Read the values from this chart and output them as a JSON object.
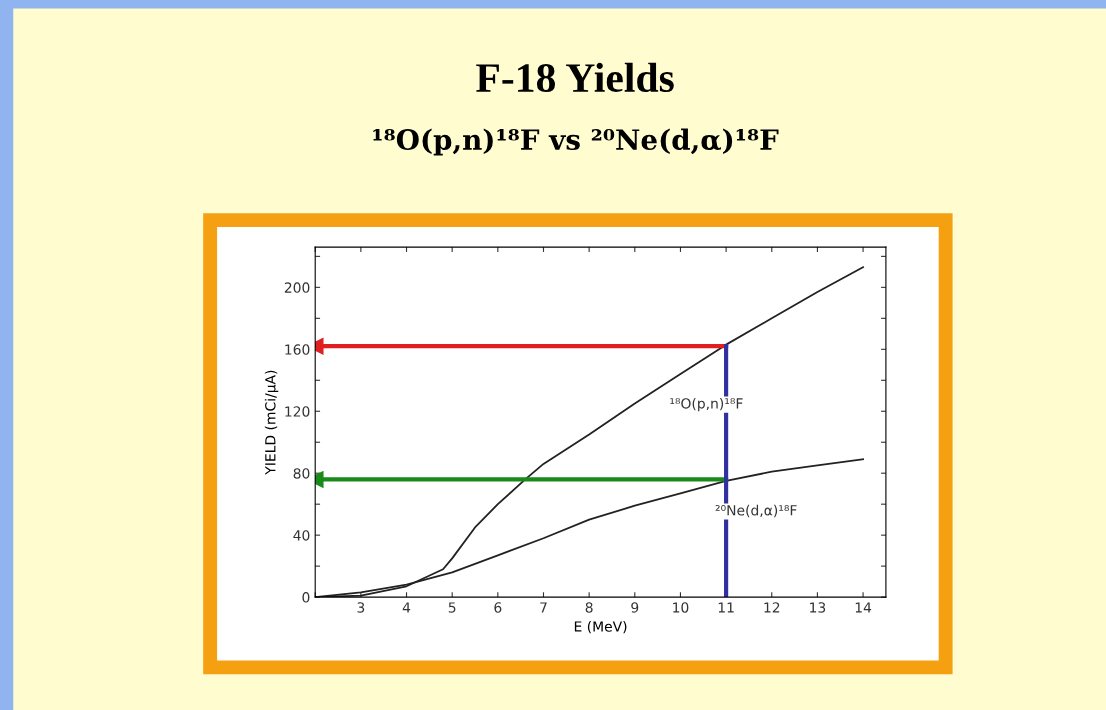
{
  "chart_data": {
    "type": "line",
    "title": "F-18 Yields",
    "subtitle": "¹⁸O(p,n)¹⁸F vs ²⁰Ne(d,α)¹⁸F",
    "xlabel": "E (MeV)",
    "ylabel": "YIELD (mCi/μA)",
    "series": [
      {
        "name": "¹⁸O(p,n)¹⁸F",
        "color": "#222222",
        "x": [
          2,
          3,
          4,
          4.8,
          5,
          5.5,
          6,
          6.6,
          7,
          8,
          9,
          10,
          11,
          12,
          13,
          14
        ],
        "values": [
          0,
          1,
          7,
          18,
          25,
          45,
          60,
          76,
          86,
          105,
          125,
          144,
          163,
          180,
          197,
          213
        ]
      },
      {
        "name": "²⁰Ne(d,α)¹⁸F",
        "color": "#222222",
        "x": [
          2,
          3,
          4,
          5,
          6,
          7,
          8,
          9,
          10,
          11,
          12,
          13,
          14
        ],
        "values": [
          0,
          3,
          8,
          16,
          27,
          38,
          50,
          59,
          67,
          75,
          81,
          85,
          89
        ]
      },
      {
        "color": "#e02020",
        "x": [
          11,
          2
        ],
        "values": [
          162,
          162
        ],
        "marker": "triangle"
      },
      {
        "color": "#1a8a1a",
        "x": [
          11,
          2
        ],
        "values": [
          76,
          76
        ],
        "marker": "triangle"
      },
      {
        "color": "#3030a0",
        "x": [
          11,
          11
        ],
        "values": [
          162,
          0
        ]
      }
    ],
    "xlim": [
      2,
      14.5
    ],
    "xticks": [
      {
        "value": 2,
        "label": null
      },
      3,
      4,
      5,
      6,
      7,
      8,
      9,
      10,
      11,
      12,
      13,
      14
    ],
    "ylim": [
      0,
      226
    ],
    "yticks": [
      0,
      {
        "value": 20,
        "label": null
      },
      40,
      {
        "value": 60,
        "label": null
      },
      80,
      {
        "value": 100,
        "label": null
      },
      120,
      {
        "value": 140,
        "label": null
      },
      160,
      {
        "value": 180,
        "label": null
      },
      200,
      {
        "value": 220,
        "label": null
      }
    ],
    "grid": false
  }
}
